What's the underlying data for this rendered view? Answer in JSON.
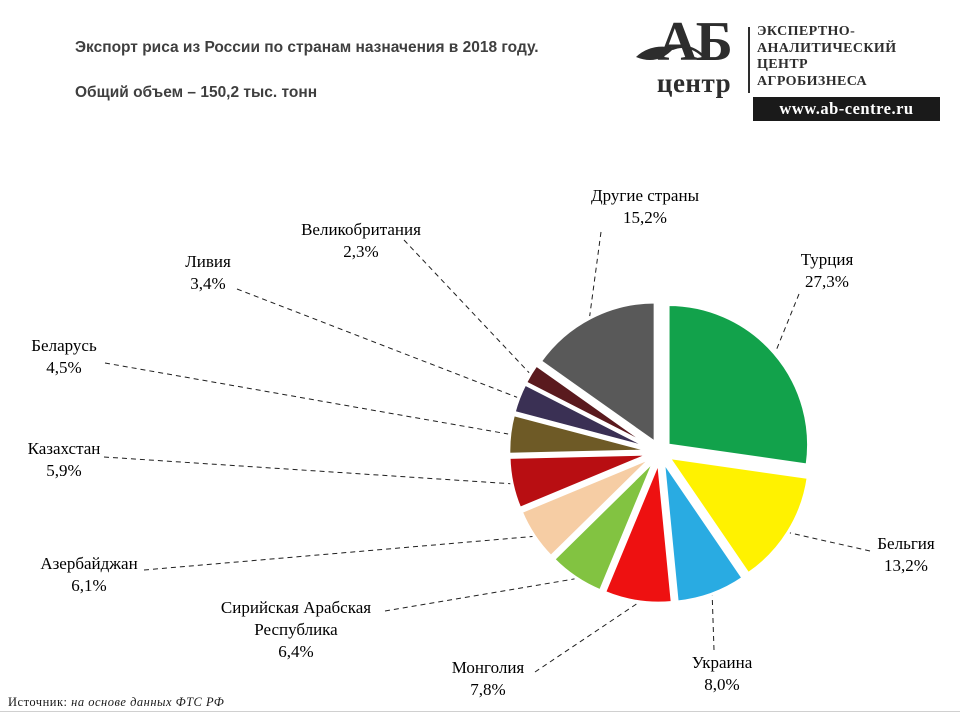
{
  "header": {
    "title": "Экспорт риса из России по странам назначения в 2018 году.",
    "subtitle": "Общий объем – 150,2 тыс. тонн"
  },
  "logo": {
    "abbr": "АБ",
    "abbr_sub": "центр",
    "org_lines": [
      "ЭКСПЕРТНО-",
      "АНАЛИТИЧЕСКИЙ",
      "ЦЕНТР",
      "АГРОБИЗНЕСА"
    ],
    "url": "www.ab-centre.ru"
  },
  "source": {
    "prefix": "Источник:",
    "text": "на основе данных ФТС РФ"
  },
  "chart_data": {
    "type": "pie",
    "title": "Экспорт риса из России по странам назначения в 2018 году.",
    "subtitle": "Общий объем – 150,2 тыс. тонн",
    "legend_position": "outside-labels-with-leader-lines",
    "slices": [
      {
        "label": "Турция",
        "value": 27.3,
        "pct_label": "27,3%",
        "color": "#12A24B"
      },
      {
        "label": "Бельгия",
        "value": 13.2,
        "pct_label": "13,2%",
        "color": "#FFF200"
      },
      {
        "label": "Украина",
        "value": 8.0,
        "pct_label": "8,0%",
        "color": "#29ABE2"
      },
      {
        "label": "Монголия",
        "value": 7.8,
        "pct_label": "7,8%",
        "color": "#EE1111"
      },
      {
        "label": "Сирийская Арабская Республика",
        "value": 6.4,
        "pct_label": "6,4%",
        "color": "#82C341"
      },
      {
        "label": "Азербайджан",
        "value": 6.1,
        "pct_label": "6,1%",
        "color": "#F6CDA4"
      },
      {
        "label": "Казахстан",
        "value": 5.9,
        "pct_label": "5,9%",
        "color": "#B80E12"
      },
      {
        "label": "Беларусь",
        "value": 4.5,
        "pct_label": "4,5%",
        "color": "#6E5A26"
      },
      {
        "label": "Ливия",
        "value": 3.4,
        "pct_label": "3,4%",
        "color": "#3A3054"
      },
      {
        "label": "Великобритания",
        "value": 2.3,
        "pct_label": "2,3%",
        "color": "#5A1A1E"
      },
      {
        "label": "Другие страны",
        "value": 15.2,
        "pct_label": "15,2%",
        "color": "#595959"
      }
    ]
  }
}
